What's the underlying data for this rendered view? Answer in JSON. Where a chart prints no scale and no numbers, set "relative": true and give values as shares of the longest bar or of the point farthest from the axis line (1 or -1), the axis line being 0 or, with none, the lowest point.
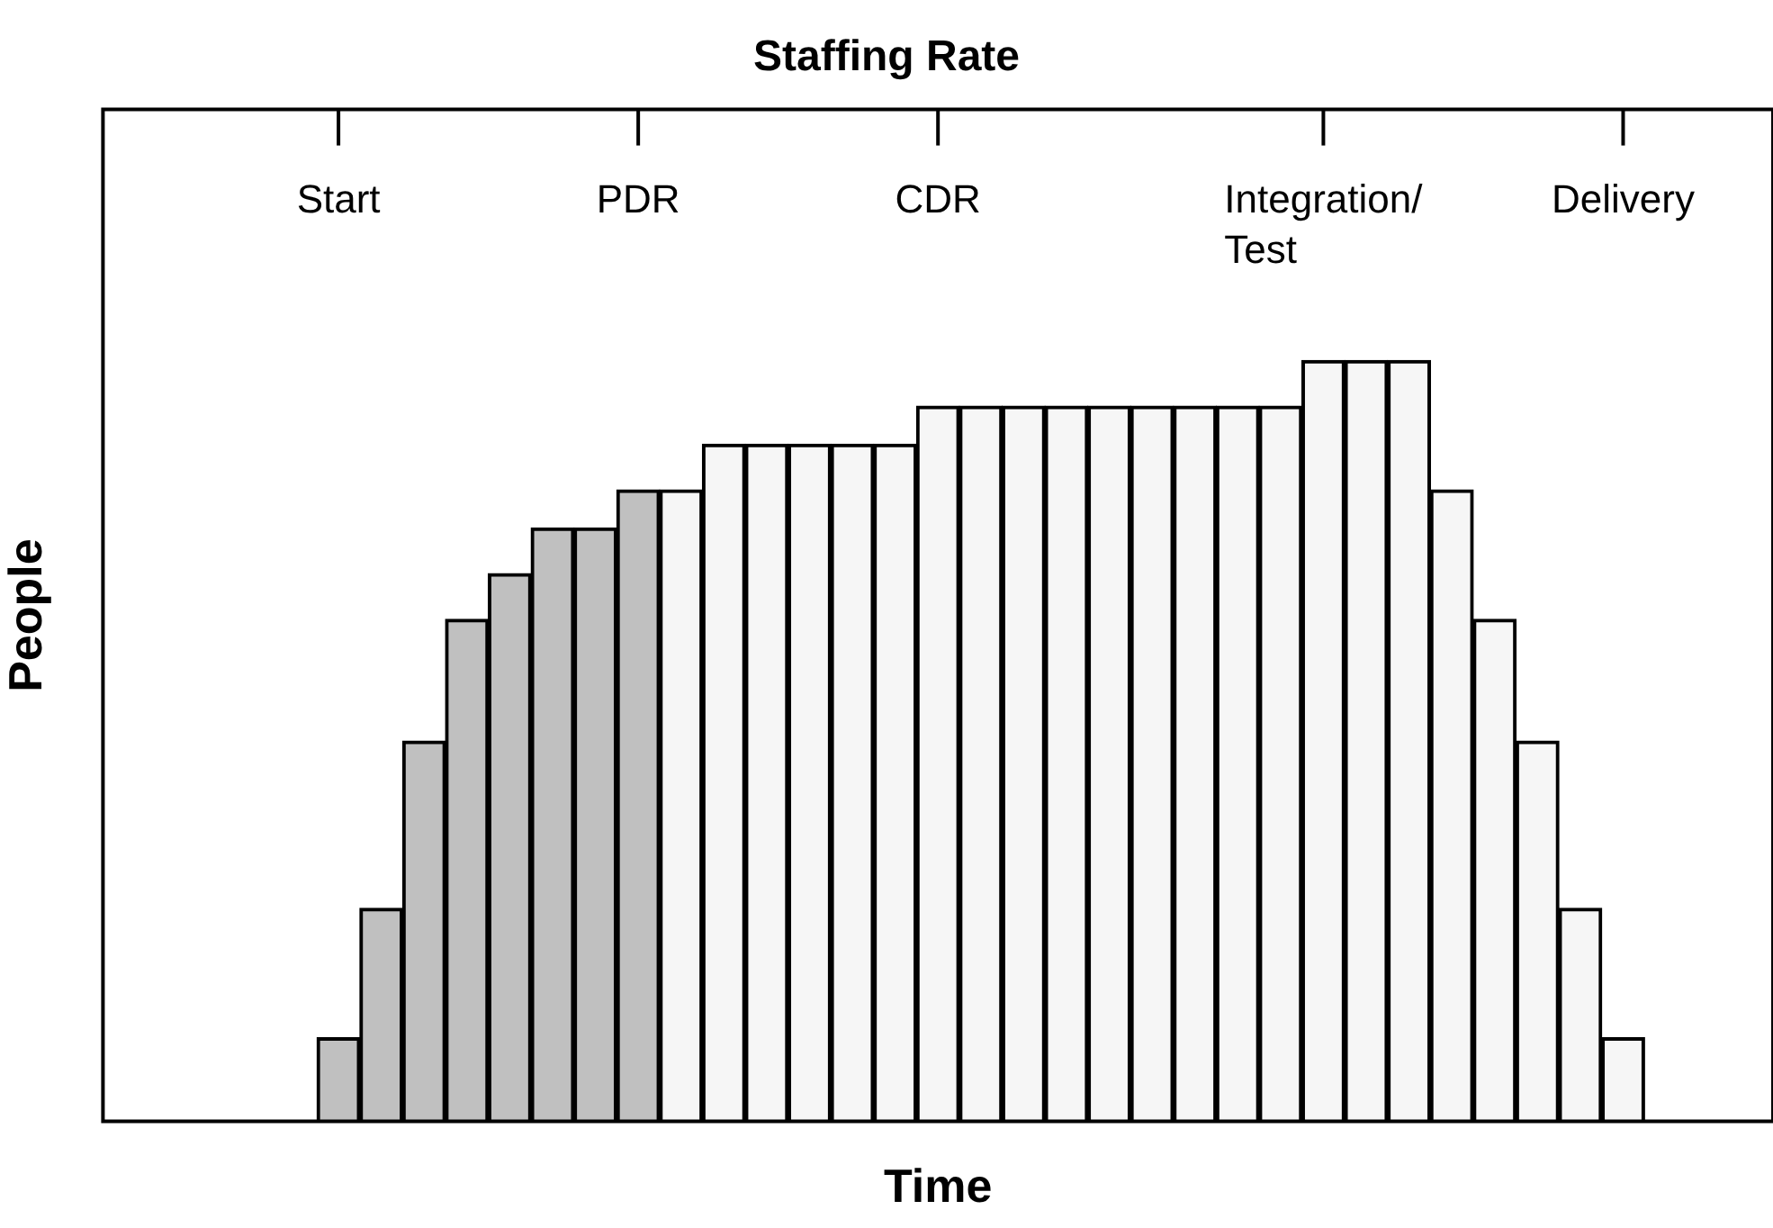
{
  "chart_data": {
    "type": "bar",
    "title": "Staffing Rate",
    "xlabel": "Time",
    "ylabel": "People",
    "relative": true,
    "categories": [
      null,
      null,
      null,
      null,
      null,
      "Start",
      null,
      null,
      null,
      null,
      null,
      null,
      "PDR",
      null,
      null,
      null,
      null,
      null,
      null,
      "CDR",
      null,
      null,
      null,
      null,
      null,
      null,
      null,
      null,
      "Integration/ Test",
      null,
      null,
      null,
      null,
      null,
      null,
      "Delivery",
      null,
      null,
      null
    ],
    "values": [
      null,
      null,
      null,
      null,
      null,
      0.11,
      0.28,
      0.5,
      0.66,
      0.72,
      0.78,
      0.78,
      0.83,
      0.83,
      0.89,
      0.89,
      0.89,
      0.89,
      0.89,
      0.94,
      0.94,
      0.94,
      0.94,
      0.94,
      0.94,
      0.94,
      0.94,
      0.94,
      1,
      1,
      1,
      0.83,
      0.66,
      0.5,
      0.28,
      0.11,
      null,
      null,
      null
    ],
    "colors": [
      "#f6f6f6",
      "#f6f6f6",
      "#f6f6f6",
      "#f6f6f6",
      "#f6f6f6",
      "#c0c0c0",
      "#c0c0c0",
      "#c0c0c0",
      "#c0c0c0",
      "#c0c0c0",
      "#c0c0c0",
      "#c0c0c0",
      "#c0c0c0",
      "#f6f6f6",
      "#f6f6f6",
      "#f6f6f6",
      "#f6f6f6",
      "#f6f6f6",
      "#f6f6f6",
      "#f6f6f6",
      "#f6f6f6",
      "#f6f6f6",
      "#f6f6f6",
      "#f6f6f6",
      "#f6f6f6",
      "#f6f6f6",
      "#f6f6f6",
      "#f6f6f6",
      "#f6f6f6",
      "#f6f6f6",
      "#f6f6f6",
      "#f6f6f6",
      "#f6f6f6",
      "#f6f6f6",
      "#f6f6f6",
      "#f6f6f6",
      "#f6f6f6",
      "#f6f6f6",
      "#f6f6f6"
    ],
    "legend": false
  }
}
